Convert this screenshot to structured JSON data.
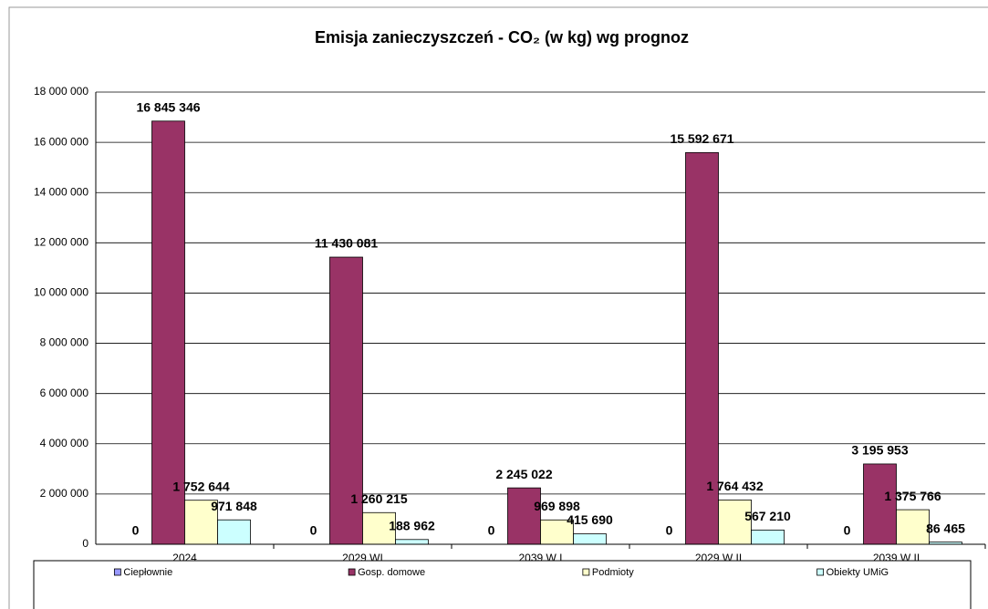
{
  "chart_data": {
    "type": "bar",
    "title": "Emisja zanieczyszczeń - CO₂  (w kg)  wg prognoz",
    "categories": [
      "2024",
      "2029 WI",
      "2039 W I",
      "2029 W II",
      "2039 W II"
    ],
    "series": [
      {
        "name": "Ciepłownie",
        "color": "#9999ff",
        "values": [
          0,
          0,
          0,
          0,
          0
        ],
        "value_labels": [
          "0",
          "0",
          "0",
          "0",
          "0"
        ]
      },
      {
        "name": "Gosp. domowe",
        "color": "#993366",
        "values": [
          16845346,
          11430081,
          2245022,
          15592671,
          3195953
        ],
        "value_labels": [
          "16 845 346",
          "11 430 081",
          "2 245 022",
          "15 592 671",
          "3 195 953"
        ]
      },
      {
        "name": "Podmioty",
        "color": "#ffffcc",
        "values": [
          1752644,
          1260215,
          969898,
          1764432,
          1375766
        ],
        "value_labels": [
          "1 752 644",
          "1 260 215",
          "969 898",
          "1 764 432",
          "1 375 766"
        ]
      },
      {
        "name": "Obiekty UMiG",
        "color": "#ccffff",
        "values": [
          971848,
          188962,
          415690,
          567210,
          86465
        ],
        "value_labels": [
          "971 848",
          "188 962",
          "415 690",
          "567 210",
          "86 465"
        ]
      }
    ],
    "ylim": [
      0,
      18000000
    ],
    "yticks": [
      {
        "value": 0,
        "label": "0"
      },
      {
        "value": 2000000,
        "label": "2 000 000"
      },
      {
        "value": 4000000,
        "label": "4 000 000"
      },
      {
        "value": 6000000,
        "label": "6 000 000"
      },
      {
        "value": 8000000,
        "label": "8 000 000"
      },
      {
        "value": 10000000,
        "label": "10 000 000"
      },
      {
        "value": 12000000,
        "label": "12 000 000"
      },
      {
        "value": 14000000,
        "label": "14 000 000"
      },
      {
        "value": 16000000,
        "label": "16 000 000"
      },
      {
        "value": 18000000,
        "label": "18 000 000"
      }
    ],
    "grid": true,
    "legend": "bottom"
  }
}
